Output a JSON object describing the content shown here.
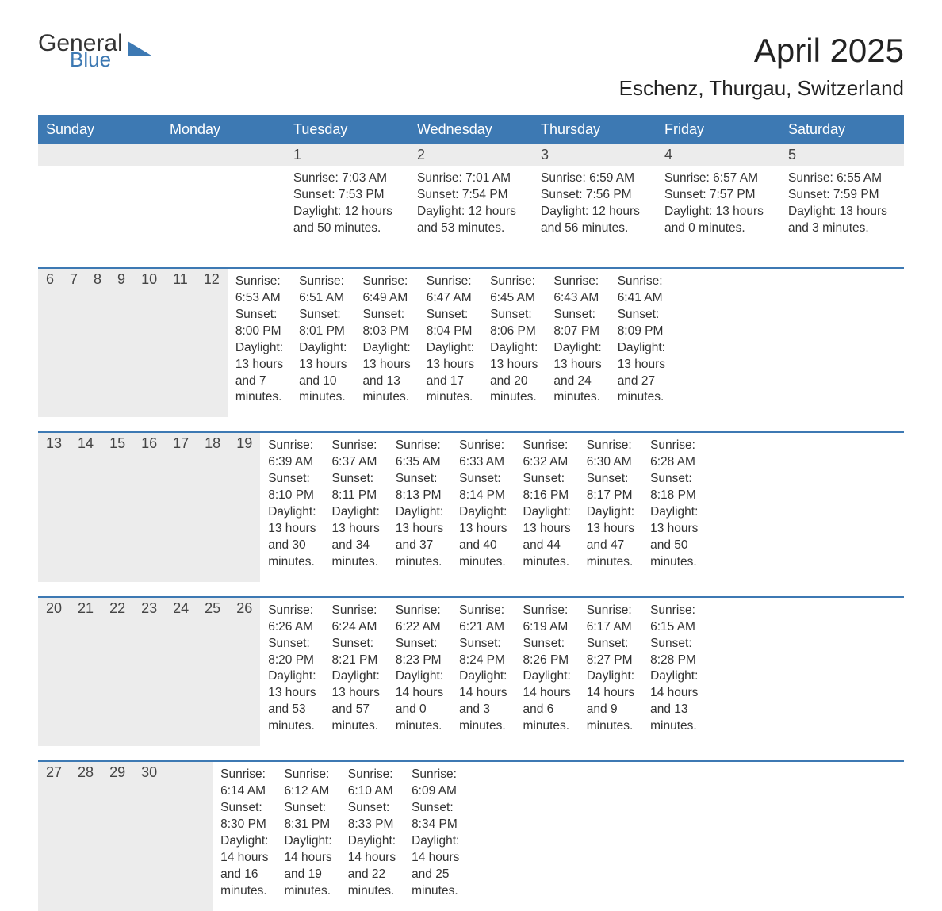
{
  "logo": {
    "general": "General",
    "blue": "Blue"
  },
  "title": {
    "month": "April 2025",
    "location": "Eschenz, Thurgau, Switzerland"
  },
  "colors": {
    "header_bg": "#3d79b3",
    "header_text": "#ffffff",
    "daynum_bg": "#ececec",
    "week_border": "#3d79b3",
    "body_text": "#333333",
    "background": "#ffffff"
  },
  "daynames": [
    "Sunday",
    "Monday",
    "Tuesday",
    "Wednesday",
    "Thursday",
    "Friday",
    "Saturday"
  ],
  "weeks": [
    {
      "nums": [
        "",
        "",
        "1",
        "2",
        "3",
        "4",
        "5"
      ],
      "cells": [
        {},
        {},
        {
          "sunrise": "Sunrise: 7:03 AM",
          "sunset": "Sunset: 7:53 PM",
          "day1": "Daylight: 12 hours",
          "day2": "and 50 minutes."
        },
        {
          "sunrise": "Sunrise: 7:01 AM",
          "sunset": "Sunset: 7:54 PM",
          "day1": "Daylight: 12 hours",
          "day2": "and 53 minutes."
        },
        {
          "sunrise": "Sunrise: 6:59 AM",
          "sunset": "Sunset: 7:56 PM",
          "day1": "Daylight: 12 hours",
          "day2": "and 56 minutes."
        },
        {
          "sunrise": "Sunrise: 6:57 AM",
          "sunset": "Sunset: 7:57 PM",
          "day1": "Daylight: 13 hours",
          "day2": "and 0 minutes."
        },
        {
          "sunrise": "Sunrise: 6:55 AM",
          "sunset": "Sunset: 7:59 PM",
          "day1": "Daylight: 13 hours",
          "day2": "and 3 minutes."
        }
      ]
    },
    {
      "nums": [
        "6",
        "7",
        "8",
        "9",
        "10",
        "11",
        "12"
      ],
      "cells": [
        {
          "sunrise": "Sunrise: 6:53 AM",
          "sunset": "Sunset: 8:00 PM",
          "day1": "Daylight: 13 hours",
          "day2": "and 7 minutes."
        },
        {
          "sunrise": "Sunrise: 6:51 AM",
          "sunset": "Sunset: 8:01 PM",
          "day1": "Daylight: 13 hours",
          "day2": "and 10 minutes."
        },
        {
          "sunrise": "Sunrise: 6:49 AM",
          "sunset": "Sunset: 8:03 PM",
          "day1": "Daylight: 13 hours",
          "day2": "and 13 minutes."
        },
        {
          "sunrise": "Sunrise: 6:47 AM",
          "sunset": "Sunset: 8:04 PM",
          "day1": "Daylight: 13 hours",
          "day2": "and 17 minutes."
        },
        {
          "sunrise": "Sunrise: 6:45 AM",
          "sunset": "Sunset: 8:06 PM",
          "day1": "Daylight: 13 hours",
          "day2": "and 20 minutes."
        },
        {
          "sunrise": "Sunrise: 6:43 AM",
          "sunset": "Sunset: 8:07 PM",
          "day1": "Daylight: 13 hours",
          "day2": "and 24 minutes."
        },
        {
          "sunrise": "Sunrise: 6:41 AM",
          "sunset": "Sunset: 8:09 PM",
          "day1": "Daylight: 13 hours",
          "day2": "and 27 minutes."
        }
      ]
    },
    {
      "nums": [
        "13",
        "14",
        "15",
        "16",
        "17",
        "18",
        "19"
      ],
      "cells": [
        {
          "sunrise": "Sunrise: 6:39 AM",
          "sunset": "Sunset: 8:10 PM",
          "day1": "Daylight: 13 hours",
          "day2": "and 30 minutes."
        },
        {
          "sunrise": "Sunrise: 6:37 AM",
          "sunset": "Sunset: 8:11 PM",
          "day1": "Daylight: 13 hours",
          "day2": "and 34 minutes."
        },
        {
          "sunrise": "Sunrise: 6:35 AM",
          "sunset": "Sunset: 8:13 PM",
          "day1": "Daylight: 13 hours",
          "day2": "and 37 minutes."
        },
        {
          "sunrise": "Sunrise: 6:33 AM",
          "sunset": "Sunset: 8:14 PM",
          "day1": "Daylight: 13 hours",
          "day2": "and 40 minutes."
        },
        {
          "sunrise": "Sunrise: 6:32 AM",
          "sunset": "Sunset: 8:16 PM",
          "day1": "Daylight: 13 hours",
          "day2": "and 44 minutes."
        },
        {
          "sunrise": "Sunrise: 6:30 AM",
          "sunset": "Sunset: 8:17 PM",
          "day1": "Daylight: 13 hours",
          "day2": "and 47 minutes."
        },
        {
          "sunrise": "Sunrise: 6:28 AM",
          "sunset": "Sunset: 8:18 PM",
          "day1": "Daylight: 13 hours",
          "day2": "and 50 minutes."
        }
      ]
    },
    {
      "nums": [
        "20",
        "21",
        "22",
        "23",
        "24",
        "25",
        "26"
      ],
      "cells": [
        {
          "sunrise": "Sunrise: 6:26 AM",
          "sunset": "Sunset: 8:20 PM",
          "day1": "Daylight: 13 hours",
          "day2": "and 53 minutes."
        },
        {
          "sunrise": "Sunrise: 6:24 AM",
          "sunset": "Sunset: 8:21 PM",
          "day1": "Daylight: 13 hours",
          "day2": "and 57 minutes."
        },
        {
          "sunrise": "Sunrise: 6:22 AM",
          "sunset": "Sunset: 8:23 PM",
          "day1": "Daylight: 14 hours",
          "day2": "and 0 minutes."
        },
        {
          "sunrise": "Sunrise: 6:21 AM",
          "sunset": "Sunset: 8:24 PM",
          "day1": "Daylight: 14 hours",
          "day2": "and 3 minutes."
        },
        {
          "sunrise": "Sunrise: 6:19 AM",
          "sunset": "Sunset: 8:26 PM",
          "day1": "Daylight: 14 hours",
          "day2": "and 6 minutes."
        },
        {
          "sunrise": "Sunrise: 6:17 AM",
          "sunset": "Sunset: 8:27 PM",
          "day1": "Daylight: 14 hours",
          "day2": "and 9 minutes."
        },
        {
          "sunrise": "Sunrise: 6:15 AM",
          "sunset": "Sunset: 8:28 PM",
          "day1": "Daylight: 14 hours",
          "day2": "and 13 minutes."
        }
      ]
    },
    {
      "nums": [
        "27",
        "28",
        "29",
        "30",
        "",
        "",
        ""
      ],
      "cells": [
        {
          "sunrise": "Sunrise: 6:14 AM",
          "sunset": "Sunset: 8:30 PM",
          "day1": "Daylight: 14 hours",
          "day2": "and 16 minutes."
        },
        {
          "sunrise": "Sunrise: 6:12 AM",
          "sunset": "Sunset: 8:31 PM",
          "day1": "Daylight: 14 hours",
          "day2": "and 19 minutes."
        },
        {
          "sunrise": "Sunrise: 6:10 AM",
          "sunset": "Sunset: 8:33 PM",
          "day1": "Daylight: 14 hours",
          "day2": "and 22 minutes."
        },
        {
          "sunrise": "Sunrise: 6:09 AM",
          "sunset": "Sunset: 8:34 PM",
          "day1": "Daylight: 14 hours",
          "day2": "and 25 minutes."
        },
        {},
        {},
        {}
      ]
    }
  ]
}
